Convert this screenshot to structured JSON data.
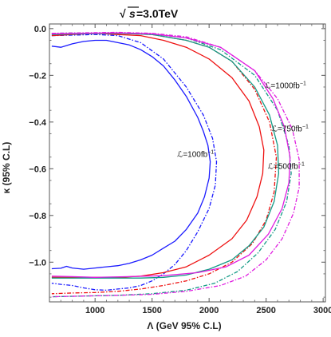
{
  "chart_data": {
    "type": "line",
    "title": {
      "sqrt_symbol": "√",
      "variable": "s",
      "rest": " =3.0TeV"
    },
    "xlabel": "Λ (GeV 95% C.L)",
    "ylabel": "κ (95% C.L)",
    "xlim": [
      600,
      3020
    ],
    "ylim": [
      -1.17,
      0.02
    ],
    "xticks": [
      1000,
      1500,
      2000,
      2500,
      3000
    ],
    "xtick_labels": [
      "1000",
      "1500",
      "2000",
      "2500",
      "3000"
    ],
    "yticks": [
      0.0,
      -0.2,
      -0.4,
      -0.6,
      -0.8,
      -1.0
    ],
    "ytick_labels": [
      "0.0",
      "−0.2",
      "−0.4",
      "−0.6",
      "−0.8",
      "−1.0"
    ],
    "grid": false,
    "series": [
      {
        "color": "#1a1aff",
        "style": "solid",
        "x": [
          620,
          700,
          800,
          900,
          1000,
          1100,
          1200,
          1300,
          1400,
          1500,
          1600,
          1700,
          1800,
          1900,
          1950,
          1990,
          2010,
          2000,
          1960,
          1900,
          1800,
          1700,
          1600,
          1500,
          1400,
          1300,
          1200,
          1100,
          1000,
          900,
          800,
          750,
          700,
          620
        ],
        "y": [
          -0.075,
          -0.08,
          -0.065,
          -0.055,
          -0.05,
          -0.05,
          -0.06,
          -0.07,
          -0.09,
          -0.12,
          -0.16,
          -0.22,
          -0.29,
          -0.38,
          -0.44,
          -0.5,
          -0.57,
          -0.64,
          -0.72,
          -0.79,
          -0.86,
          -0.91,
          -0.94,
          -0.97,
          -0.99,
          -1.005,
          -1.015,
          -1.02,
          -1.025,
          -1.03,
          -1.025,
          -1.018,
          -1.026,
          -1.028
        ]
      },
      {
        "color": "#1a1aff",
        "style": "dashdot",
        "x": [
          620,
          800,
          1000,
          1200,
          1400,
          1600,
          1800,
          1950,
          2030,
          2065,
          2055,
          2000,
          1900,
          1800,
          1700,
          1600,
          1500,
          1400,
          1300,
          1200,
          1100,
          1000,
          900,
          800,
          700,
          620
        ],
        "y": [
          -0.03,
          -0.028,
          -0.025,
          -0.03,
          -0.06,
          -0.13,
          -0.25,
          -0.37,
          -0.47,
          -0.57,
          -0.67,
          -0.77,
          -0.87,
          -0.95,
          -1.01,
          -1.05,
          -1.08,
          -1.1,
          -1.11,
          -1.115,
          -1.12,
          -1.118,
          -1.11,
          -1.1,
          -1.095,
          -1.09
        ]
      },
      {
        "color": "#ee1111",
        "style": "solid",
        "x": [
          620,
          800,
          1000,
          1200,
          1400,
          1600,
          1800,
          2000,
          2200,
          2350,
          2440,
          2480,
          2470,
          2420,
          2330,
          2200,
          2000,
          1800,
          1600,
          1400,
          1200,
          1000,
          800,
          620
        ],
        "y": [
          -0.03,
          -0.025,
          -0.02,
          -0.025,
          -0.03,
          -0.05,
          -0.08,
          -0.13,
          -0.21,
          -0.31,
          -0.42,
          -0.52,
          -0.62,
          -0.72,
          -0.82,
          -0.9,
          -0.97,
          -1.02,
          -1.045,
          -1.06,
          -1.065,
          -1.065,
          -1.065,
          -1.065
        ]
      },
      {
        "color": "#ee1111",
        "style": "dashdot",
        "x": [
          620,
          900,
          1200,
          1500,
          1800,
          2000,
          2200,
          2400,
          2530,
          2590,
          2570,
          2500,
          2380,
          2200,
          2000,
          1800,
          1600,
          1400,
          1200,
          1000,
          800,
          620
        ],
        "y": [
          -0.025,
          -0.022,
          -0.02,
          -0.025,
          -0.05,
          -0.08,
          -0.14,
          -0.26,
          -0.4,
          -0.55,
          -0.7,
          -0.82,
          -0.92,
          -1.0,
          -1.05,
          -1.08,
          -1.1,
          -1.115,
          -1.125,
          -1.13,
          -1.132,
          -1.135
        ]
      },
      {
        "color": "#139a86",
        "style": "solid",
        "x": [
          620,
          900,
          1200,
          1500,
          1800,
          2000,
          2200,
          2400,
          2530,
          2600,
          2610,
          2570,
          2480,
          2350,
          2200,
          2000,
          1800,
          1600,
          1400,
          1200,
          1000,
          800,
          620
        ],
        "y": [
          -0.025,
          -0.022,
          -0.02,
          -0.025,
          -0.05,
          -0.08,
          -0.14,
          -0.25,
          -0.37,
          -0.5,
          -0.62,
          -0.74,
          -0.85,
          -0.93,
          -0.99,
          -1.03,
          -1.055,
          -1.065,
          -1.068,
          -1.068,
          -1.068,
          -1.068,
          -1.068
        ]
      },
      {
        "color": "#139a86",
        "style": "dashdot",
        "x": [
          620,
          900,
          1200,
          1500,
          1800,
          2100,
          2400,
          2600,
          2700,
          2720,
          2680,
          2580,
          2430,
          2250,
          2050,
          1800,
          1500,
          1200,
          900,
          620
        ],
        "y": [
          -0.02,
          -0.018,
          -0.018,
          -0.022,
          -0.04,
          -0.09,
          -0.2,
          -0.35,
          -0.5,
          -0.62,
          -0.74,
          -0.86,
          -0.96,
          -1.04,
          -1.09,
          -1.12,
          -1.135,
          -1.142,
          -1.145,
          -1.148
        ]
      },
      {
        "color": "#e01ee0",
        "style": "solid",
        "x": [
          620,
          900,
          1200,
          1500,
          1800,
          2100,
          2400,
          2560,
          2660,
          2710,
          2700,
          2640,
          2520,
          2350,
          2150,
          1900,
          1600,
          1300,
          1000,
          800,
          620
        ],
        "y": [
          -0.022,
          -0.02,
          -0.018,
          -0.022,
          -0.04,
          -0.08,
          -0.18,
          -0.3,
          -0.42,
          -0.55,
          -0.66,
          -0.77,
          -0.88,
          -0.97,
          -1.02,
          -1.045,
          -1.058,
          -1.062,
          -1.065,
          -1.062,
          -1.06
        ]
      },
      {
        "color": "#e01ee0",
        "style": "dashdot",
        "x": [
          620,
          900,
          1200,
          1500,
          1800,
          2100,
          2400,
          2600,
          2730,
          2790,
          2790,
          2740,
          2640,
          2500,
          2320,
          2100,
          1800,
          1500,
          1200,
          900,
          620
        ],
        "y": [
          -0.02,
          -0.018,
          -0.016,
          -0.02,
          -0.035,
          -0.08,
          -0.18,
          -0.3,
          -0.43,
          -0.56,
          -0.68,
          -0.79,
          -0.9,
          -0.99,
          -1.06,
          -1.1,
          -1.125,
          -1.138,
          -1.142,
          -1.145,
          -1.148
        ]
      }
    ],
    "annotations": [
      {
        "text": "ℒ=100fb",
        "sup": "−1",
        "x": 1720,
        "y": -0.55
      },
      {
        "text": "ℒ=500fb",
        "sup": "−1",
        "x": 2515,
        "y": -0.6
      },
      {
        "text": "ℒ=750fb",
        "sup": "−1",
        "x": 2550,
        "y": -0.44
      },
      {
        "text": "ℒ=1000fb",
        "sup": "−1",
        "x": 2490,
        "y": -0.255
      }
    ]
  }
}
